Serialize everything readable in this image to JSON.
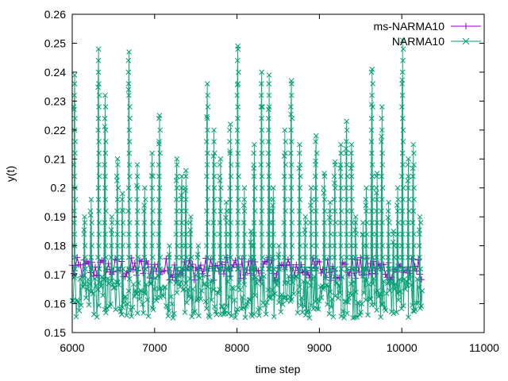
{
  "chart_data": {
    "type": "line",
    "xlabel": "time step",
    "ylabel": "y(t)",
    "xlim": [
      6000,
      11000
    ],
    "ylim": [
      0.15,
      0.26
    ],
    "xticks": [
      6000,
      7000,
      8000,
      9000,
      10000,
      11000
    ],
    "yticks": [
      0.15,
      0.16,
      0.17,
      0.18,
      0.19,
      0.2,
      0.21,
      0.22,
      0.23,
      0.24,
      0.25,
      0.26
    ],
    "xtick_labels": [
      "6000",
      "7000",
      "8000",
      "9000",
      "10000",
      "11000"
    ],
    "ytick_labels": [
      "0.15",
      "0.16",
      "0.17",
      "0.18",
      "0.19",
      "0.2",
      "0.21",
      "0.22",
      "0.23",
      "0.24",
      "0.25",
      "0.26"
    ],
    "legend_position": "top-right",
    "grid": false,
    "series": [
      {
        "name": "ms-NARMA10",
        "color": "#9400d3",
        "marker": "plus",
        "x_range": [
          6000,
          10250
        ],
        "baseline": 0.1725,
        "band": [
          0.168,
          0.176
        ]
      },
      {
        "name": "NARMA10",
        "color": "#009e73",
        "marker": "cross",
        "x_range": [
          6000,
          10250
        ],
        "baseline": 0.162,
        "band": [
          0.155,
          0.17
        ],
        "spikes": [
          {
            "x": 6030,
            "y": 0.239
          },
          {
            "x": 6150,
            "y": 0.19
          },
          {
            "x": 6230,
            "y": 0.196
          },
          {
            "x": 6320,
            "y": 0.248
          },
          {
            "x": 6400,
            "y": 0.232
          },
          {
            "x": 6480,
            "y": 0.19
          },
          {
            "x": 6550,
            "y": 0.21
          },
          {
            "x": 6610,
            "y": 0.198
          },
          {
            "x": 6690,
            "y": 0.247
          },
          {
            "x": 6790,
            "y": 0.208
          },
          {
            "x": 6880,
            "y": 0.2
          },
          {
            "x": 6970,
            "y": 0.212
          },
          {
            "x": 7060,
            "y": 0.225
          },
          {
            "x": 7180,
            "y": 0.18
          },
          {
            "x": 7270,
            "y": 0.21
          },
          {
            "x": 7330,
            "y": 0.204
          },
          {
            "x": 7380,
            "y": 0.206
          },
          {
            "x": 7440,
            "y": 0.19
          },
          {
            "x": 7530,
            "y": 0.18
          },
          {
            "x": 7640,
            "y": 0.236
          },
          {
            "x": 7720,
            "y": 0.22
          },
          {
            "x": 7800,
            "y": 0.21
          },
          {
            "x": 7870,
            "y": 0.195
          },
          {
            "x": 7920,
            "y": 0.222
          },
          {
            "x": 8010,
            "y": 0.249
          },
          {
            "x": 8090,
            "y": 0.2
          },
          {
            "x": 8170,
            "y": 0.185
          },
          {
            "x": 8210,
            "y": 0.215
          },
          {
            "x": 8300,
            "y": 0.24
          },
          {
            "x": 8390,
            "y": 0.239
          },
          {
            "x": 8440,
            "y": 0.2
          },
          {
            "x": 8510,
            "y": 0.18
          },
          {
            "x": 8580,
            "y": 0.22
          },
          {
            "x": 8660,
            "y": 0.237
          },
          {
            "x": 8760,
            "y": 0.215
          },
          {
            "x": 8830,
            "y": 0.19
          },
          {
            "x": 8900,
            "y": 0.2
          },
          {
            "x": 8960,
            "y": 0.218
          },
          {
            "x": 9060,
            "y": 0.205
          },
          {
            "x": 9130,
            "y": 0.195
          },
          {
            "x": 9190,
            "y": 0.209
          },
          {
            "x": 9260,
            "y": 0.215
          },
          {
            "x": 9330,
            "y": 0.223
          },
          {
            "x": 9390,
            "y": 0.215
          },
          {
            "x": 9440,
            "y": 0.19
          },
          {
            "x": 9530,
            "y": 0.188
          },
          {
            "x": 9570,
            "y": 0.2
          },
          {
            "x": 9640,
            "y": 0.241
          },
          {
            "x": 9700,
            "y": 0.205
          },
          {
            "x": 9760,
            "y": 0.228
          },
          {
            "x": 9840,
            "y": 0.195
          },
          {
            "x": 9900,
            "y": 0.185
          },
          {
            "x": 9950,
            "y": 0.2
          },
          {
            "x": 10010,
            "y": 0.251
          },
          {
            "x": 10080,
            "y": 0.21
          },
          {
            "x": 10140,
            "y": 0.215
          },
          {
            "x": 10220,
            "y": 0.19
          }
        ]
      }
    ]
  }
}
